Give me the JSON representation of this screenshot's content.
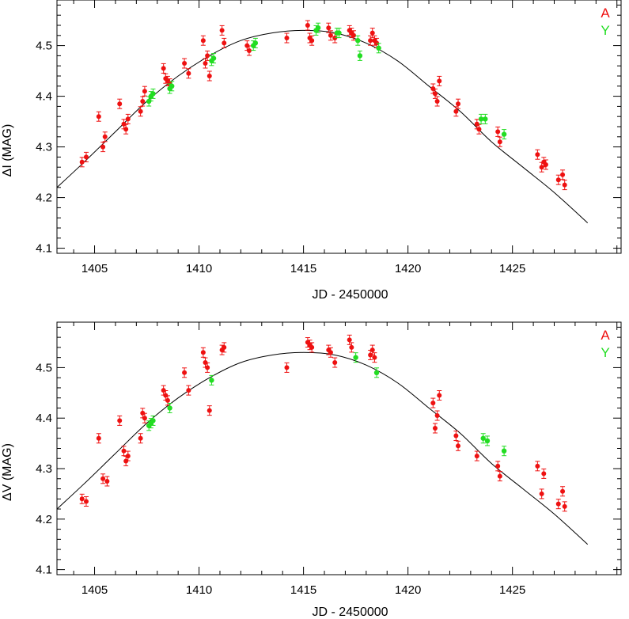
{
  "colors": {
    "A": "#ee1111",
    "Y": "#22dd22",
    "curve": "#000000",
    "axes": "#000000"
  },
  "chart_data": [
    {
      "type": "scatter",
      "xlabel": "JD - 2450000",
      "ylabel": "ΔI (MAG)",
      "xlim": [
        1403.2,
        1430.2
      ],
      "ylim": [
        4.09,
        4.59
      ],
      "xticks": [
        1405,
        1410,
        1415,
        1420,
        1425
      ],
      "yticks": [
        4.1,
        4.2,
        4.3,
        4.4,
        4.5
      ],
      "legend": {
        "position": "top-right",
        "entries": [
          "A",
          "Y"
        ]
      },
      "curve": {
        "x": [
          1403.2,
          1404.5,
          1406,
          1407.5,
          1409,
          1410.5,
          1412,
          1413.5,
          1415,
          1416.5,
          1418,
          1419.5,
          1421,
          1422.5,
          1424,
          1425.5,
          1427,
          1428.6
        ],
        "y": [
          4.22,
          4.27,
          4.33,
          4.39,
          4.44,
          4.48,
          4.51,
          4.525,
          4.53,
          4.525,
          4.505,
          4.47,
          4.42,
          4.37,
          4.31,
          4.26,
          4.21,
          4.15
        ]
      },
      "series": [
        {
          "name": "A",
          "x": [
            1404.4,
            1404.6,
            1405.2,
            1405.4,
            1405.5,
            1406.2,
            1406.4,
            1406.5,
            1406.6,
            1407.2,
            1407.3,
            1407.4,
            1408.3,
            1408.4,
            1408.5,
            1408.6,
            1409.3,
            1409.5,
            1410.2,
            1410.3,
            1410.4,
            1410.5,
            1411.1,
            1411.2,
            1412.3,
            1412.4,
            1414.2,
            1415.2,
            1415.3,
            1415.4,
            1416.2,
            1416.3,
            1416.5,
            1417.2,
            1417.3,
            1417.4,
            1418.2,
            1418.3,
            1418.4,
            1418.5,
            1421.2,
            1421.3,
            1421.4,
            1421.5,
            1422.3,
            1422.4,
            1423.3,
            1423.4,
            1424.3,
            1424.4,
            1426.2,
            1426.4,
            1426.5,
            1426.6,
            1427.2,
            1427.4,
            1427.5
          ],
          "y": [
            4.27,
            4.28,
            4.36,
            4.3,
            4.32,
            4.385,
            4.345,
            4.335,
            4.355,
            4.37,
            4.39,
            4.41,
            4.455,
            4.435,
            4.43,
            4.425,
            4.465,
            4.445,
            4.51,
            4.465,
            4.48,
            4.44,
            4.53,
            4.505,
            4.5,
            4.49,
            4.515,
            4.54,
            4.515,
            4.51,
            4.535,
            4.52,
            4.515,
            4.53,
            4.525,
            4.52,
            4.51,
            4.525,
            4.51,
            4.505,
            4.415,
            4.405,
            4.39,
            4.43,
            4.37,
            4.385,
            4.345,
            4.335,
            4.33,
            4.31,
            4.285,
            4.26,
            4.27,
            4.265,
            4.235,
            4.245,
            4.225
          ]
        },
        {
          "name": "Y",
          "x": [
            1407.6,
            1407.7,
            1407.8,
            1408.6,
            1408.7,
            1410.6,
            1410.7,
            1412.6,
            1412.7,
            1415.6,
            1415.7,
            1416.6,
            1416.7,
            1417.6,
            1417.7,
            1418.6,
            1423.5,
            1423.7,
            1424.6
          ],
          "y": [
            4.39,
            4.4,
            4.405,
            4.415,
            4.42,
            4.47,
            4.475,
            4.5,
            4.505,
            4.53,
            4.535,
            4.525,
            4.525,
            4.51,
            4.48,
            4.495,
            4.355,
            4.355,
            4.325
          ]
        }
      ]
    },
    {
      "type": "scatter",
      "xlabel": "JD - 2450000",
      "ylabel": "ΔV (MAG)",
      "xlim": [
        1403.2,
        1430.2
      ],
      "ylim": [
        4.09,
        4.59
      ],
      "xticks": [
        1405,
        1410,
        1415,
        1420,
        1425
      ],
      "yticks": [
        4.1,
        4.2,
        4.3,
        4.4,
        4.5
      ],
      "legend": {
        "position": "top-right",
        "entries": [
          "A",
          "Y"
        ]
      },
      "curve": {
        "x": [
          1403.2,
          1404.5,
          1406,
          1407.5,
          1409,
          1410.5,
          1412,
          1413.5,
          1415,
          1416.5,
          1418,
          1419.5,
          1421,
          1422.5,
          1424,
          1425.5,
          1427,
          1428.6
        ],
        "y": [
          4.22,
          4.27,
          4.33,
          4.39,
          4.44,
          4.48,
          4.51,
          4.525,
          4.53,
          4.525,
          4.505,
          4.47,
          4.42,
          4.37,
          4.31,
          4.26,
          4.21,
          4.15
        ]
      },
      "series": [
        {
          "name": "A",
          "x": [
            1404.4,
            1404.6,
            1405.2,
            1405.4,
            1405.6,
            1406.2,
            1406.4,
            1406.5,
            1406.6,
            1407.2,
            1407.3,
            1407.4,
            1408.3,
            1408.4,
            1408.5,
            1409.3,
            1409.5,
            1410.2,
            1410.3,
            1410.4,
            1410.5,
            1411.1,
            1411.2,
            1414.2,
            1415.2,
            1415.3,
            1415.4,
            1416.2,
            1416.3,
            1416.5,
            1417.2,
            1417.3,
            1418.2,
            1418.3,
            1418.4,
            1421.2,
            1421.3,
            1421.4,
            1421.5,
            1422.3,
            1422.4,
            1423.3,
            1424.3,
            1424.4,
            1426.2,
            1426.4,
            1426.5,
            1427.2,
            1427.4,
            1427.5
          ],
          "y": [
            4.24,
            4.235,
            4.36,
            4.28,
            4.275,
            4.395,
            4.335,
            4.315,
            4.325,
            4.36,
            4.41,
            4.4,
            4.455,
            4.445,
            4.435,
            4.49,
            4.455,
            4.53,
            4.51,
            4.5,
            4.415,
            4.535,
            4.54,
            4.5,
            4.55,
            4.545,
            4.54,
            4.535,
            4.53,
            4.51,
            4.555,
            4.54,
            4.525,
            4.535,
            4.52,
            4.43,
            4.38,
            4.405,
            4.445,
            4.365,
            4.345,
            4.325,
            4.305,
            4.285,
            4.305,
            4.25,
            4.29,
            4.23,
            4.255,
            4.225
          ]
        },
        {
          "name": "Y",
          "x": [
            1407.6,
            1407.7,
            1407.8,
            1408.6,
            1410.6,
            1417.5,
            1418.5,
            1423.6,
            1423.8,
            1424.6
          ],
          "y": [
            4.385,
            4.39,
            4.395,
            4.42,
            4.475,
            4.52,
            4.49,
            4.36,
            4.355,
            4.335
          ]
        }
      ]
    }
  ]
}
